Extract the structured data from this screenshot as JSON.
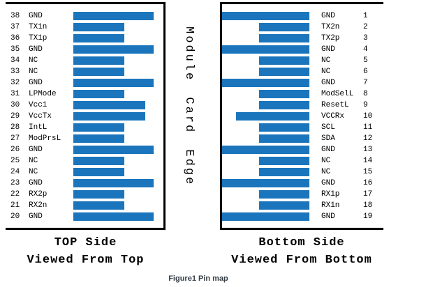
{
  "figure": {
    "caption": "Figure1 Pin map",
    "center_label": "Module Card Edge"
  },
  "colors": {
    "bar": "#1b75bc",
    "border": "#000000",
    "caption_text": "#384048"
  },
  "top_panel": {
    "title_line1": "TOP Side",
    "title_line2": "Viewed From Top",
    "pins": [
      {
        "num": "38",
        "label": "GND",
        "size": "long"
      },
      {
        "num": "37",
        "label": "TX1n",
        "size": "short"
      },
      {
        "num": "36",
        "label": "TX1p",
        "size": "short"
      },
      {
        "num": "35",
        "label": "GND",
        "size": "long"
      },
      {
        "num": "34",
        "label": "NC",
        "size": "short"
      },
      {
        "num": "33",
        "label": "NC",
        "size": "short"
      },
      {
        "num": "32",
        "label": "GND",
        "size": "long"
      },
      {
        "num": "31",
        "label": "LPMode",
        "size": "short"
      },
      {
        "num": "30",
        "label": "Vcc1",
        "size": "medium"
      },
      {
        "num": "29",
        "label": "VccTx",
        "size": "medium"
      },
      {
        "num": "28",
        "label": "IntL",
        "size": "short"
      },
      {
        "num": "27",
        "label": "ModPrsL",
        "size": "short"
      },
      {
        "num": "26",
        "label": "GND",
        "size": "long"
      },
      {
        "num": "25",
        "label": "NC",
        "size": "short"
      },
      {
        "num": "24",
        "label": "NC",
        "size": "short"
      },
      {
        "num": "23",
        "label": "GND",
        "size": "long"
      },
      {
        "num": "22",
        "label": "RX2p",
        "size": "short"
      },
      {
        "num": "21",
        "label": "RX2n",
        "size": "short"
      },
      {
        "num": "20",
        "label": "GND",
        "size": "long"
      }
    ]
  },
  "bottom_panel": {
    "title_line1": "Bottom Side",
    "title_line2": "Viewed From Bottom",
    "pins": [
      {
        "num": "1",
        "label": "GND",
        "size": "long"
      },
      {
        "num": "2",
        "label": "TX2n",
        "size": "short"
      },
      {
        "num": "3",
        "label": "TX2p",
        "size": "short"
      },
      {
        "num": "4",
        "label": "GND",
        "size": "long"
      },
      {
        "num": "5",
        "label": "NC",
        "size": "short"
      },
      {
        "num": "6",
        "label": "NC",
        "size": "short"
      },
      {
        "num": "7",
        "label": "GND",
        "size": "long"
      },
      {
        "num": "8",
        "label": "ModSelL",
        "size": "short"
      },
      {
        "num": "9",
        "label": "ResetL",
        "size": "short"
      },
      {
        "num": "10",
        "label": "VCCRx",
        "size": "medium"
      },
      {
        "num": "11",
        "label": "SCL",
        "size": "short"
      },
      {
        "num": "12",
        "label": "SDA",
        "size": "short"
      },
      {
        "num": "13",
        "label": "GND",
        "size": "long"
      },
      {
        "num": "14",
        "label": "NC",
        "size": "short"
      },
      {
        "num": "15",
        "label": "NC",
        "size": "short"
      },
      {
        "num": "16",
        "label": "GND",
        "size": "long"
      },
      {
        "num": "17",
        "label": "RX1p",
        "size": "short"
      },
      {
        "num": "18",
        "label": "RX1n",
        "size": "short"
      },
      {
        "num": "19",
        "label": "GND",
        "size": "long"
      }
    ]
  }
}
